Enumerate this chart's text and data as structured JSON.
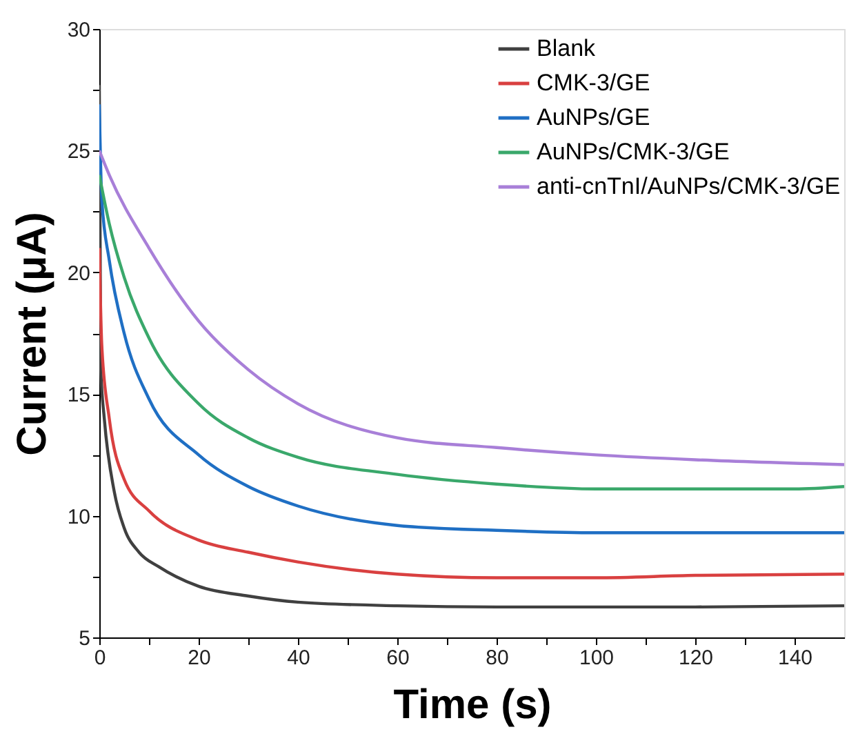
{
  "chart_data": {
    "type": "line",
    "xlabel": "Time (s)",
    "ylabel": "Current (μA)",
    "xlim": [
      0,
      150
    ],
    "ylim": [
      5,
      30
    ],
    "xticks": [
      0,
      {
        "value": 10,
        "label": null
      },
      20,
      {
        "value": 30,
        "label": null
      },
      40,
      {
        "value": 50,
        "label": null
      },
      60,
      {
        "value": 70,
        "label": null
      },
      80,
      {
        "value": 90,
        "label": null
      },
      100,
      {
        "value": 110,
        "label": null
      },
      120,
      {
        "value": 130,
        "label": null
      },
      140
    ],
    "yticks": [
      5,
      {
        "value": 7.5,
        "label": null
      },
      10,
      {
        "value": 12.5,
        "label": null
      },
      15,
      {
        "value": 17.5,
        "label": null
      },
      20,
      {
        "value": 22.5,
        "label": null
      },
      25,
      {
        "value": 27.5,
        "label": null
      },
      30
    ],
    "legend": "top right",
    "grid": false,
    "marker": "none",
    "line_style": "solid",
    "series": [
      {
        "name": "Blank",
        "color": "#404040",
        "x": [
          0,
          0.3,
          1,
          3,
          5,
          8,
          12,
          20,
          30,
          40,
          60,
          80,
          100,
          120,
          150
        ],
        "values": [
          27.7,
          16,
          14,
          11,
          9.5,
          8.5,
          7.9,
          7.1,
          6.7,
          6.45,
          6.3,
          6.25,
          6.25,
          6.25,
          6.3
        ]
      },
      {
        "name": "CMK-3/GE",
        "color": "#d94040",
        "x": [
          0,
          0.5,
          2,
          5,
          10,
          20,
          30,
          40,
          60,
          80,
          100,
          120,
          150
        ],
        "values": [
          21,
          17,
          14,
          11.5,
          10.2,
          9.0,
          8.5,
          8.1,
          7.6,
          7.45,
          7.45,
          7.55,
          7.6
        ]
      },
      {
        "name": "AuNPs/GE",
        "color": "#1f6fc4",
        "x": [
          0,
          0.5,
          2,
          5,
          10,
          20,
          30,
          40,
          60,
          80,
          100,
          120,
          150
        ],
        "values": [
          26.9,
          23,
          20.5,
          17.5,
          14.8,
          12.5,
          11.2,
          10.4,
          9.6,
          9.4,
          9.3,
          9.3,
          9.3
        ]
      },
      {
        "name": "AuNPs/CMK-3/GE",
        "color": "#3aa86b",
        "x": [
          0,
          2,
          5,
          10,
          20,
          30,
          40,
          60,
          80,
          100,
          120,
          140,
          150
        ],
        "values": [
          24,
          22,
          19.8,
          17.3,
          14.6,
          13.2,
          12.4,
          11.7,
          11.3,
          11.1,
          11.1,
          11.1,
          11.2
        ]
      },
      {
        "name": "anti-cnTnI/AuNPs/CMK-3/GE",
        "color": "#a87fd8",
        "x": [
          0,
          2,
          10,
          20,
          30,
          40,
          60,
          80,
          100,
          120,
          150
        ],
        "values": [
          25,
          24,
          21,
          18,
          16,
          14.6,
          13.2,
          12.8,
          12.5,
          12.3,
          12.1
        ]
      }
    ]
  }
}
